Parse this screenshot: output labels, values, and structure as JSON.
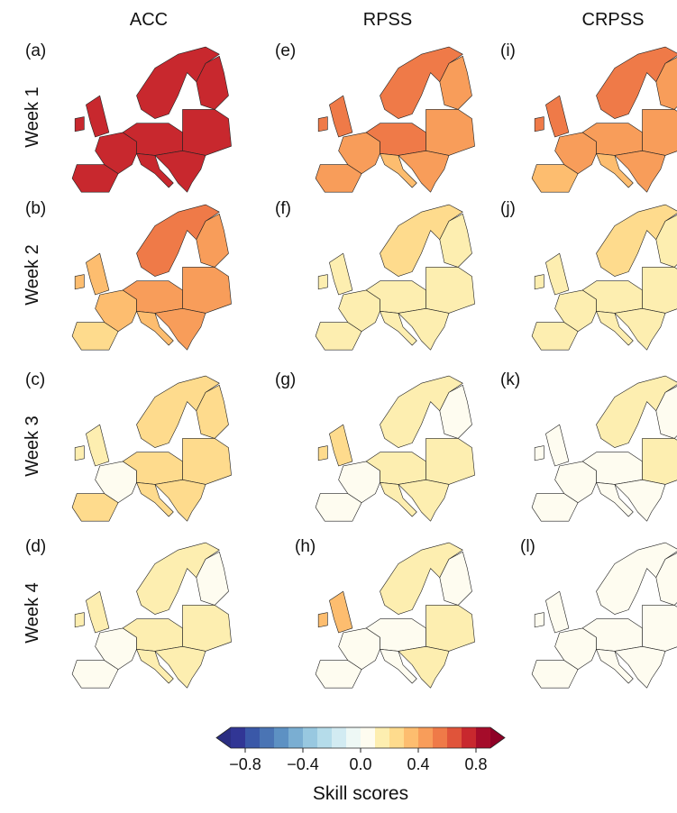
{
  "columns": [
    "ACC",
    "RPSS",
    "CRPSS"
  ],
  "rows": [
    "Week 1",
    "Week 2",
    "Week 3",
    "Week 4"
  ],
  "panels": [
    [
      {
        "label": "(a)",
        "values": [
          0.72,
          0.75,
          0.75,
          0.75,
          0.78,
          0.76,
          0.75,
          0.75,
          0.75
        ]
      },
      {
        "label": "(e)",
        "values": [
          0.52,
          0.5,
          0.55,
          0.5,
          0.45,
          0.55,
          0.5,
          0.35,
          0.4
        ]
      },
      {
        "label": "(i)",
        "values": [
          0.52,
          0.48,
          0.55,
          0.5,
          0.35,
          0.5,
          0.45,
          0.35,
          0.4
        ]
      }
    ],
    [
      {
        "label": "(b)",
        "values": [
          0.52,
          0.45,
          0.35,
          0.35,
          0.25,
          0.45,
          0.45,
          0.35,
          0.4
        ]
      },
      {
        "label": "(f)",
        "values": [
          0.25,
          0.15,
          0.15,
          0.15,
          0.15,
          0.15,
          0.15,
          0.15,
          0.15
        ]
      },
      {
        "label": "(j)",
        "values": [
          0.25,
          0.15,
          0.15,
          0.15,
          0.15,
          0.15,
          0.15,
          0.15,
          0.15
        ]
      }
    ],
    [
      {
        "label": "(c)",
        "values": [
          0.25,
          0.25,
          0.15,
          0.05,
          0.2,
          0.2,
          0.25,
          0.2,
          0.2
        ]
      },
      {
        "label": "(g)",
        "values": [
          0.15,
          0.05,
          0.2,
          0.05,
          0.05,
          0.15,
          0.15,
          0.1,
          0.15
        ]
      },
      {
        "label": "(k)",
        "values": [
          0.15,
          0.05,
          0.05,
          0.02,
          0.02,
          0.05,
          0.15,
          0.05,
          0.05
        ]
      }
    ],
    [
      {
        "label": "(d)",
        "values": [
          0.15,
          0.05,
          0.15,
          0.05,
          0.05,
          0.15,
          0.15,
          0.1,
          0.15
        ]
      },
      {
        "label": "(h)",
        "values": [
          0.15,
          0.05,
          0.3,
          0.02,
          0.02,
          0.05,
          0.1,
          0.05,
          0.15
        ]
      },
      {
        "label": "(l)",
        "values": [
          0.02,
          0.02,
          0.02,
          0.02,
          0.02,
          0.02,
          0.02,
          0.02,
          0.02
        ]
      }
    ]
  ],
  "colorbar": {
    "label": "Skill scores",
    "clim": [
      -0.9,
      0.9
    ],
    "colors": [
      "#313695",
      "#3a58a8",
      "#4a74b4",
      "#5d91c3",
      "#7aaed2",
      "#98c8e0",
      "#b5dcea",
      "#d2ebf2",
      "#eef8f5",
      "#fefcf0",
      "#fdeeb0",
      "#fedb8d",
      "#fdbd6f",
      "#f89d5a",
      "#ef7a48",
      "#e0543a",
      "#c8282e",
      "#a50c2a"
    ],
    "under_color": "#2b2e82",
    "over_color": "#8e0126",
    "ticks": [
      {
        "value": -0.8,
        "label": "−0.8"
      },
      {
        "value": -0.4,
        "label": "−0.4"
      },
      {
        "value": 0,
        "label": "0.0"
      },
      0.4,
      0.8
    ]
  }
}
